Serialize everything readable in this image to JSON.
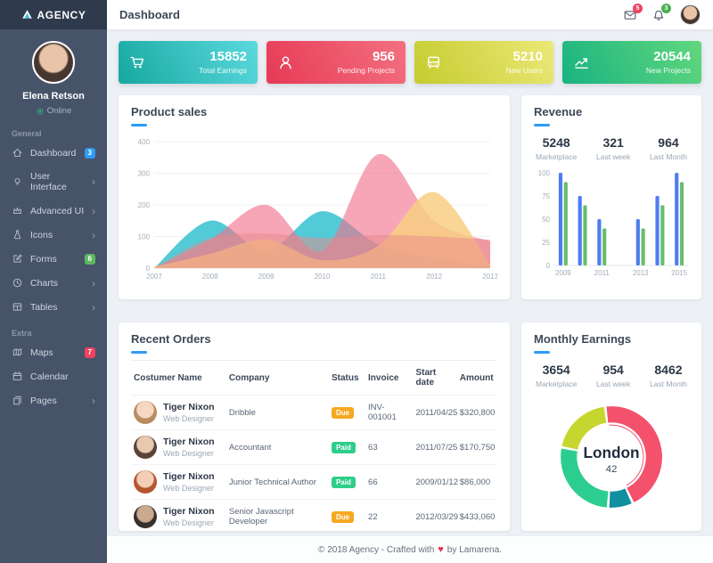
{
  "brand": {
    "name": "AGENCY"
  },
  "topbar": {
    "title": "Dashboard",
    "mail_badge": "5",
    "bell_badge": "3"
  },
  "sidebar": {
    "user": {
      "name": "Elena Retson",
      "status": "Online"
    },
    "sections": [
      {
        "label": "General",
        "items": [
          {
            "label": "Dashboard",
            "icon": "home-icon",
            "badge": "3",
            "badge_color": "#2d9cf4"
          },
          {
            "label": "User Interface",
            "icon": "bulb-icon",
            "chevron": "›"
          },
          {
            "label": "Advanced UI",
            "icon": "crown-icon",
            "chevron": "›"
          },
          {
            "label": "Icons",
            "icon": "flask-icon",
            "chevron": "›"
          },
          {
            "label": "Forms",
            "icon": "edit-icon",
            "badge": "6",
            "badge_color": "#5cb860"
          },
          {
            "label": "Charts",
            "icon": "clock-icon",
            "chevron": "›"
          },
          {
            "label": "Tables",
            "icon": "table-icon",
            "chevron": "›"
          }
        ]
      },
      {
        "label": "Extra",
        "items": [
          {
            "label": "Maps",
            "icon": "map-icon",
            "badge": "7",
            "badge_color": "#f0415f"
          },
          {
            "label": "Calendar",
            "icon": "calendar-icon"
          },
          {
            "label": "Pages",
            "icon": "pages-icon",
            "chevron": "›"
          }
        ]
      }
    ]
  },
  "stat_cards": [
    {
      "value": "15852",
      "label": "Total Earnings",
      "icon": "cart-icon",
      "from": "#16a8a0",
      "to": "#5cd9de"
    },
    {
      "value": "956",
      "label": "Pending Projects",
      "icon": "user-icon",
      "from": "#e63a55",
      "to": "#f37080"
    },
    {
      "value": "5210",
      "label": "New Users",
      "icon": "bus-icon",
      "from": "#c4cc2e",
      "to": "#ece878"
    },
    {
      "value": "20544",
      "label": "New Projects",
      "icon": "trend-icon",
      "from": "#18b380",
      "to": "#62d77e"
    }
  ],
  "panels": {
    "product_sales": {
      "title": "Product sales"
    },
    "revenue": {
      "title": "Revenue",
      "stats": [
        {
          "value": "5248",
          "label": "Marketplace"
        },
        {
          "value": "321",
          "label": "Last week"
        },
        {
          "value": "964",
          "label": "Last Month"
        }
      ]
    },
    "recent_orders": {
      "title": "Recent Orders",
      "columns": [
        "Costumer Name",
        "Company",
        "Status",
        "Invoice",
        "Start date",
        "Amount"
      ],
      "rows": [
        {
          "name": "Tiger Nixon",
          "role": "Web Designer",
          "company": "Dribble",
          "status": "Due",
          "status_color": "#f7a821",
          "invoice": "INV-001001",
          "start_date": "2011/04/25",
          "amount": "$320,800",
          "avatar": [
            "#f6d7c3",
            "#b98b60"
          ]
        },
        {
          "name": "Tiger Nixon",
          "role": "Web Designer",
          "company": "Accountant",
          "status": "Paid",
          "status_color": "#2dce89",
          "invoice": "63",
          "start_date": "2011/07/25",
          "amount": "$170,750",
          "avatar": [
            "#e8c9b0",
            "#5a4238"
          ]
        },
        {
          "name": "Tiger Nixon",
          "role": "Web Designer",
          "company": "Junior Technical Author",
          "status": "Paid",
          "status_color": "#2dce89",
          "invoice": "66",
          "start_date": "2009/01/12",
          "amount": "$86,000",
          "avatar": [
            "#f3cdb6",
            "#b5552e"
          ]
        },
        {
          "name": "Tiger Nixon",
          "role": "Web Designer",
          "company": "Senior Javascript Developer",
          "status": "Due",
          "status_color": "#f7a821",
          "invoice": "22",
          "start_date": "2012/03/29",
          "amount": "$433,060",
          "avatar": [
            "#caa98e",
            "#35302e"
          ]
        }
      ]
    },
    "monthly_earnings": {
      "title": "Monthly Earnings",
      "stats": [
        {
          "value": "3654",
          "label": "Marketplace"
        },
        {
          "value": "954",
          "label": "Last week"
        },
        {
          "value": "8462",
          "label": "Last Month"
        }
      ]
    }
  },
  "footer": {
    "text_before": "© 2018 Agency - Crafted with",
    "heart": "♥",
    "text_after": "by Lamarena."
  },
  "chart_data": [
    {
      "type": "area",
      "title": "Product sales",
      "x": [
        2007,
        2008,
        2009,
        2010,
        2011,
        2012,
        2013
      ],
      "series": [
        {
          "name": "teal",
          "color": "rgba(64,196,211,0.9)",
          "values": [
            0,
            150,
            55,
            180,
            75,
            35,
            5
          ]
        },
        {
          "name": "pink",
          "color": "rgba(242,112,138,0.62)",
          "values": [
            0,
            90,
            200,
            55,
            360,
            150,
            85
          ]
        },
        {
          "name": "yellow",
          "color": "rgba(248,206,132,0.85)",
          "values": [
            5,
            45,
            90,
            25,
            70,
            240,
            10
          ]
        },
        {
          "name": "salmon",
          "color": "rgba(233,138,138,0.5)",
          "values": [
            0,
            95,
            110,
            95,
            105,
            100,
            90
          ]
        }
      ],
      "ylim": [
        0,
        400
      ],
      "yticks": [
        0,
        100,
        200,
        300,
        400
      ],
      "grid": true,
      "legend": false
    },
    {
      "type": "bar",
      "title": "Revenue",
      "x": [
        2009,
        2010,
        2011,
        2013,
        2014,
        2015
      ],
      "xticks_shown": [
        2009,
        2011,
        2013,
        2015
      ],
      "series": [
        {
          "name": "blue",
          "color": "#4e7df0",
          "values": [
            100,
            75,
            50,
            50,
            75,
            100
          ]
        },
        {
          "name": "green",
          "color": "#69bd6e",
          "values": [
            90,
            65,
            40,
            40,
            65,
            90
          ]
        }
      ],
      "ylim": [
        0,
        100
      ],
      "yticks": [
        0,
        25,
        50,
        75,
        100
      ],
      "grid": false,
      "legend": false
    },
    {
      "type": "pie",
      "title": "Monthly Earnings donut",
      "center_label": "London",
      "center_value": "42",
      "slices": [
        {
          "name": "red",
          "value": 45,
          "color": "#f4516c"
        },
        {
          "name": "teal",
          "value": 8,
          "color": "#0f8f9f"
        },
        {
          "name": "green",
          "value": 27,
          "color": "#2bce8e"
        },
        {
          "name": "yellow",
          "value": 20,
          "color": "#c7d62f"
        }
      ]
    }
  ]
}
